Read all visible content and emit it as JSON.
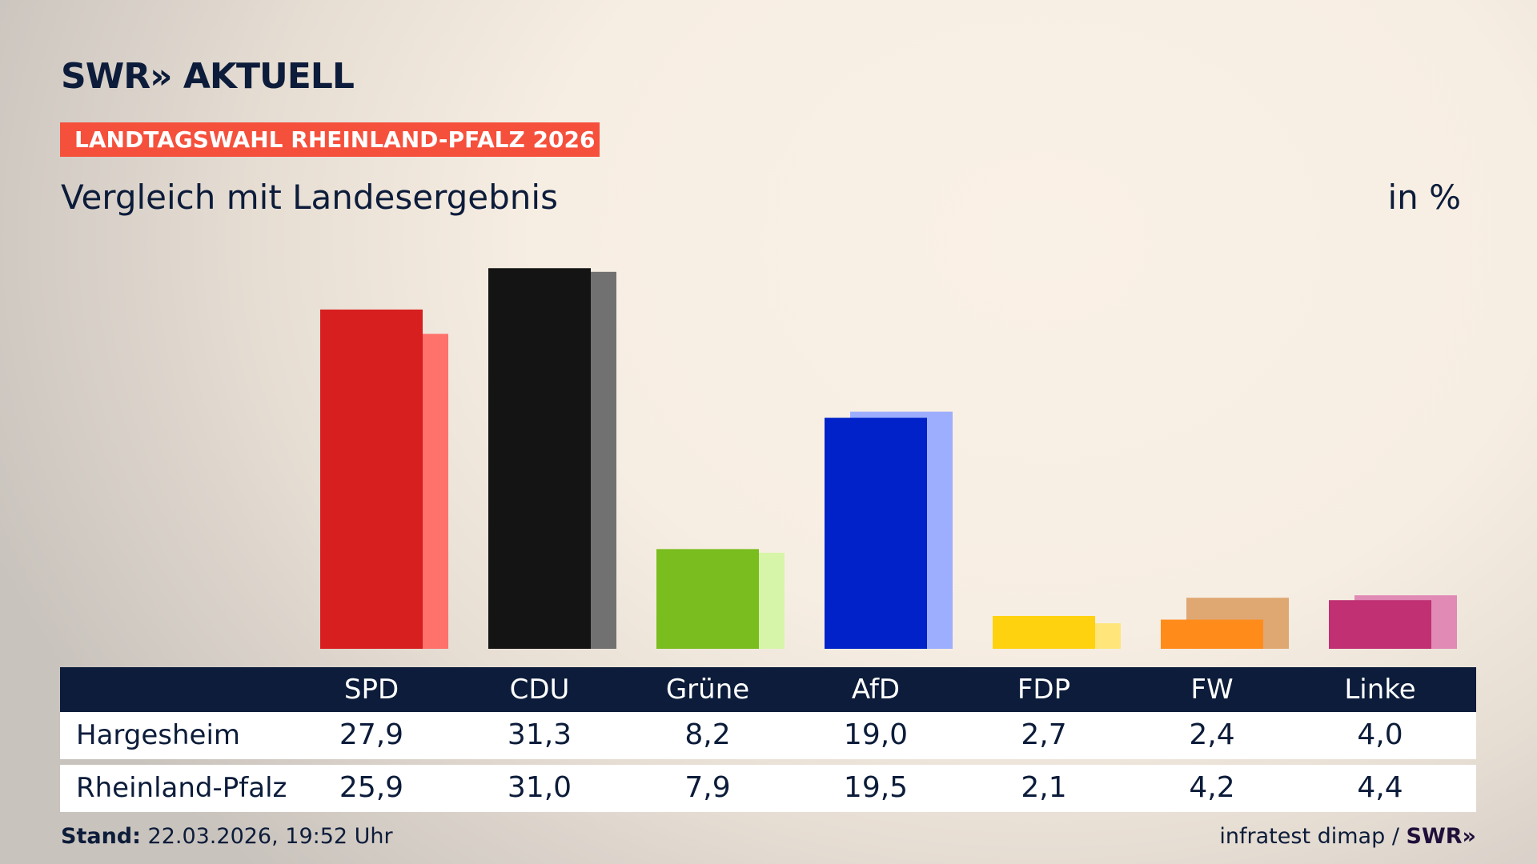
{
  "header": {
    "logo": "SWR» AKTUELL",
    "banner": "LANDTAGSWAHL RHEINLAND-PFALZ 2026",
    "subtitle": "Vergleich mit Landesergebnis",
    "unit": "in %"
  },
  "chart_data": {
    "type": "bar",
    "categories": [
      "SPD",
      "CDU",
      "Grüne",
      "AfD",
      "FDP",
      "FW",
      "Linke"
    ],
    "series": [
      {
        "name": "Hargesheim",
        "values": [
          27.9,
          31.3,
          8.2,
          19.0,
          2.7,
          2.4,
          4.0
        ],
        "labels": [
          "27,9",
          "31,3",
          "8,2",
          "19,0",
          "2,7",
          "2,4",
          "4,0"
        ],
        "colors": [
          "#d81f1f",
          "#141414",
          "#7abd1e",
          "#0022c8",
          "#ffd20f",
          "#ff8c1a",
          "#c03073"
        ]
      },
      {
        "name": "Rheinland-Pfalz",
        "values": [
          25.9,
          31.0,
          7.9,
          19.5,
          2.1,
          4.2,
          4.4
        ],
        "labels": [
          "25,9",
          "31,0",
          "7,9",
          "19,5",
          "2,1",
          "4,2",
          "4,4"
        ],
        "colors": [
          "#ff716b",
          "#717171",
          "#d6f5a8",
          "#9daeff",
          "#ffe57a",
          "#dfa873",
          "#e08ab5"
        ]
      }
    ],
    "grid": false
  },
  "footer": {
    "stand_label": "Stand:",
    "stand_value": "22.03.2026, 19:52 Uhr",
    "source": "infratest dimap /",
    "source_logo": "SWR»"
  }
}
